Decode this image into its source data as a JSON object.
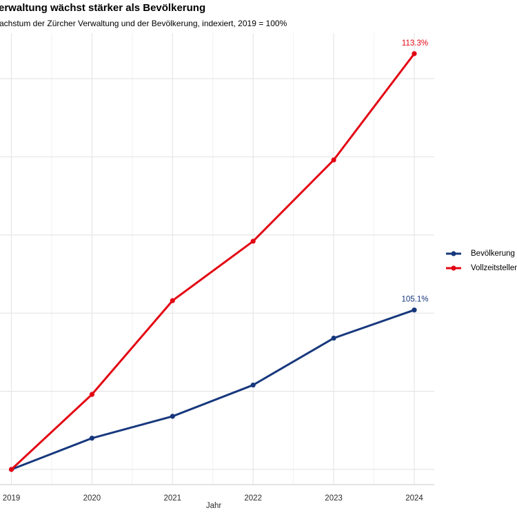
{
  "header": {
    "title": "erwaltung wächst stärker als Bevölkerung",
    "subtitle": "achstum der Zürcher Verwaltung und der Bevölkerung, indexiert, 2019 = 100%"
  },
  "chart_data": {
    "type": "line",
    "x": [
      2019,
      2020,
      2021,
      2022,
      2023,
      2024
    ],
    "series": [
      {
        "name": "Bevölkerung",
        "color": "#17387d",
        "values": [
          100,
          101.0,
          101.7,
          102.7,
          104.2,
          105.1
        ],
        "end_label": "105.1%"
      },
      {
        "name": "Vollzeitstellen V",
        "color": "#e30613",
        "values": [
          100,
          102.4,
          105.4,
          107.3,
          109.9,
          113.3
        ],
        "end_label": "113.3%"
      }
    ],
    "xlabel": "Jahr",
    "ylim": [
      100,
      113.3
    ],
    "y_gridlines": [
      100,
      102.5,
      105,
      107.5,
      110,
      112.5
    ],
    "grid": "on",
    "legend_position": "right",
    "note": "left edge of plot and y-axis labels are cut off; legend cut at right edge"
  },
  "colors": {
    "grid_major": "#e6e6e6",
    "grid_minor": "#f1f1f1",
    "axis_line": "#dcdcdc",
    "tick_label": "#2b2b2b"
  }
}
